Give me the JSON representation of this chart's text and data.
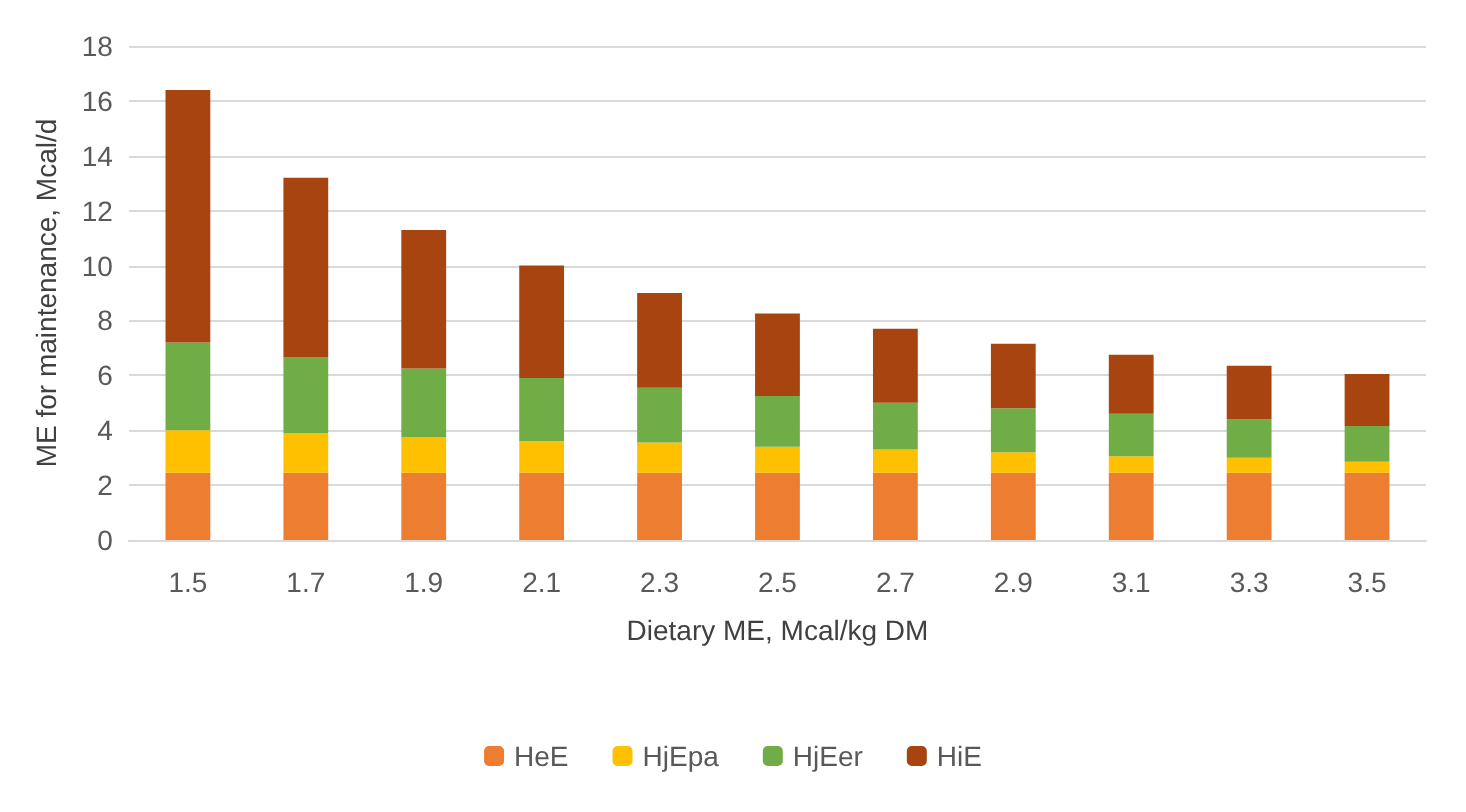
{
  "chart_data": {
    "type": "bar",
    "stacked": true,
    "xlabel": "Dietary ME, Mcal/kg DM",
    "ylabel": "ME for maintenance, Mcal/d",
    "categories": [
      "1.5",
      "1.7",
      "1.9",
      "2.1",
      "2.3",
      "2.5",
      "2.7",
      "2.9",
      "3.1",
      "3.3",
      "3.5"
    ],
    "series": [
      {
        "name": "HeE",
        "color": "#ed7d31",
        "values": [
          2.45,
          2.45,
          2.45,
          2.45,
          2.45,
          2.45,
          2.45,
          2.45,
          2.45,
          2.45,
          2.45
        ]
      },
      {
        "name": "HjEpa",
        "color": "#ffc000",
        "values": [
          1.55,
          1.45,
          1.3,
          1.15,
          1.1,
          0.95,
          0.85,
          0.75,
          0.6,
          0.55,
          0.4
        ]
      },
      {
        "name": "HjEer",
        "color": "#70ad47",
        "values": [
          3.2,
          2.75,
          2.5,
          2.3,
          2.0,
          1.85,
          1.7,
          1.6,
          1.55,
          1.4,
          1.3
        ]
      },
      {
        "name": "HiE",
        "color": "#a8440f",
        "values": [
          9.2,
          6.55,
          5.05,
          4.1,
          3.45,
          3.0,
          2.7,
          2.35,
          2.15,
          1.95,
          1.9
        ]
      }
    ],
    "ylim": [
      0,
      18
    ],
    "yticks": [
      0,
      2,
      4,
      6,
      8,
      10,
      12,
      14,
      16,
      18
    ],
    "grid": "y",
    "legend": "bottom"
  }
}
